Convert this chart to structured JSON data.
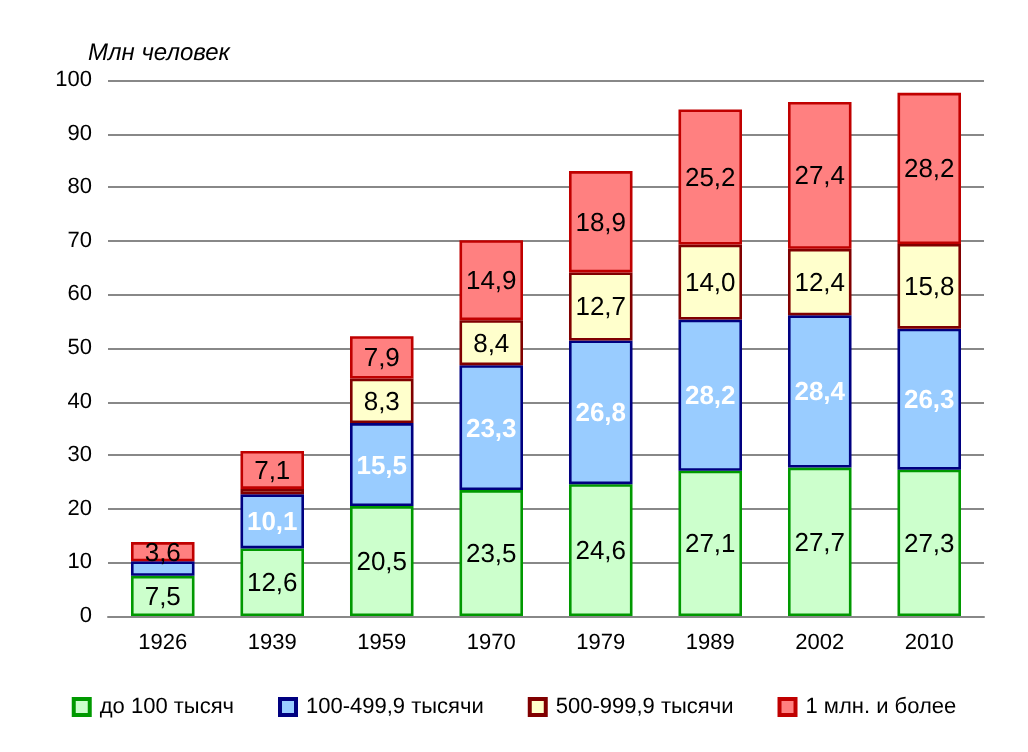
{
  "chart_data": {
    "type": "bar",
    "stacked": true,
    "ylabel": "Млн человек",
    "categories": [
      "1926",
      "1939",
      "1959",
      "1970",
      "1979",
      "1989",
      "2002",
      "2010"
    ],
    "series": [
      {
        "name": "до 100 тысяч",
        "color": "#ccffcc",
        "values": [
          7.5,
          12.6,
          20.5,
          23.5,
          24.6,
          27.1,
          27.7,
          27.3
        ],
        "value_labels": [
          "7,5",
          "12,6",
          "20,5",
          "23,5",
          "24,6",
          "27,1",
          "27,7",
          "27,3"
        ]
      },
      {
        "name": "100-499,9 тысячи",
        "color": "#99ccff",
        "values": [
          2.7,
          10.1,
          15.5,
          23.3,
          26.8,
          28.2,
          28.4,
          26.3
        ],
        "value_labels": [
          null,
          "10,1",
          "15,5",
          "23,3",
          "26,8",
          "28,2",
          "28,4",
          "26,3"
        ]
      },
      {
        "name": "500-999,9 тысячи",
        "color": "#ffffcc",
        "values": [
          null,
          1.0,
          8.3,
          8.4,
          12.7,
          14.0,
          12.4,
          15.8
        ],
        "value_labels": [
          null,
          null,
          "8,3",
          "8,4",
          "12,7",
          "14,0",
          "12,4",
          "15,8"
        ]
      },
      {
        "name": "1 млн. и более",
        "color": "#ff8080",
        "values": [
          3.6,
          7.1,
          7.9,
          14.9,
          18.9,
          25.2,
          27.4,
          28.2
        ],
        "value_labels": [
          "3,6",
          "7,1",
          "7,9",
          "14,9",
          "18,9",
          "25,2",
          "27,4",
          "28,2"
        ]
      }
    ],
    "ylim": [
      0,
      100
    ],
    "yticks": [
      0,
      10,
      20,
      30,
      40,
      50,
      60,
      70,
      80,
      90,
      100
    ],
    "grid": "y",
    "legend": "bottom"
  }
}
